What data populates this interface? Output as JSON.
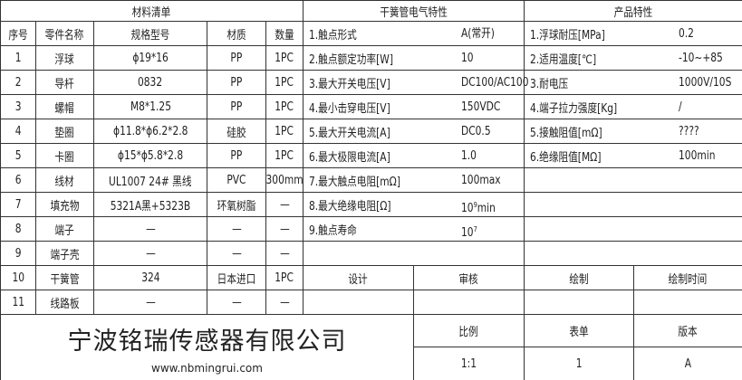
{
  "bom": {
    "title": "材料清单",
    "headers": [
      "序号",
      "零件名称",
      "规格型号",
      "材质",
      "数量"
    ],
    "rows": [
      [
        "1",
        "浮球",
        "ϕ19*16",
        "PP",
        "1PC"
      ],
      [
        "2",
        "导杆",
        "0832",
        "PP",
        "1PC"
      ],
      [
        "3",
        "螺帽",
        "M8*1.25",
        "PP",
        "1PC"
      ],
      [
        "4",
        "垫圈",
        "ϕ11.8*ϕ6.2*2.8",
        "硅胶",
        "1PC"
      ],
      [
        "5",
        "卡圈",
        "ϕ15*ϕ5.8*2.8",
        "PP",
        "1PC"
      ],
      [
        "6",
        "线材",
        "UL1007 24# 黑线",
        "PVC",
        "300mm"
      ],
      [
        "7",
        "填充物",
        "5321A黑+5323B",
        "环氧树脂",
        "—"
      ],
      [
        "8",
        "端子",
        "—",
        "—",
        "—"
      ],
      [
        "9",
        "端子壳",
        "—",
        "—",
        "—"
      ],
      [
        "10",
        "干簧管",
        "324",
        "日本进口",
        "1PC"
      ],
      [
        "11",
        "线路板",
        "—",
        "—",
        "—"
      ]
    ]
  },
  "electrical": {
    "title": "干簧管电气特性",
    "items": [
      {
        "label": "1.触点形式",
        "value": "A(常开)"
      },
      {
        "label": "2.触点额定功率[W]",
        "value": "10"
      },
      {
        "label": "3.最大开关电压[V]",
        "value": "DC100/AC100"
      },
      {
        "label": "4.最小击穿电压[V]",
        "value": "150VDC"
      },
      {
        "label": "5.最大开关电流[A]",
        "value": "DC0.5"
      },
      {
        "label": "6.最大极限电流[A]",
        "value": "1.0"
      },
      {
        "label": "7.最大触点电阻[mΩ]",
        "value": "100max"
      },
      {
        "label": "8.最大绝缘电阻[Ω]",
        "value": "10",
        "sup": "9",
        "suffix": "min"
      },
      {
        "label": "9.触点寿命",
        "value": "10",
        "sup": "7",
        "suffix": ""
      }
    ]
  },
  "product": {
    "title": "产品特性",
    "items": [
      {
        "label": "1.浮球耐压[MPa]",
        "value": "0.2"
      },
      {
        "label": "2.适用温度[℃]",
        "value": "-10~+85"
      },
      {
        "label": "3.耐电压",
        "value": "1000V/10S"
      },
      {
        "label": "4.端子拉力强度[Kg]",
        "value": "/"
      },
      {
        "label": "5.接触阻值[mΩ]",
        "value": "????"
      },
      {
        "label": "6.绝缘阻值[MΩ]",
        "value": "100min"
      }
    ]
  },
  "signoff": {
    "labels": [
      "设计",
      "审核",
      "绘制",
      "绘制时间"
    ]
  },
  "titleblock": {
    "company": "宁波铭瑞传感器有限公司",
    "website": "www.nbmingrui.com",
    "labels": [
      "比例",
      "表单",
      "版本"
    ],
    "values": [
      "1:1",
      "1",
      "A"
    ]
  }
}
